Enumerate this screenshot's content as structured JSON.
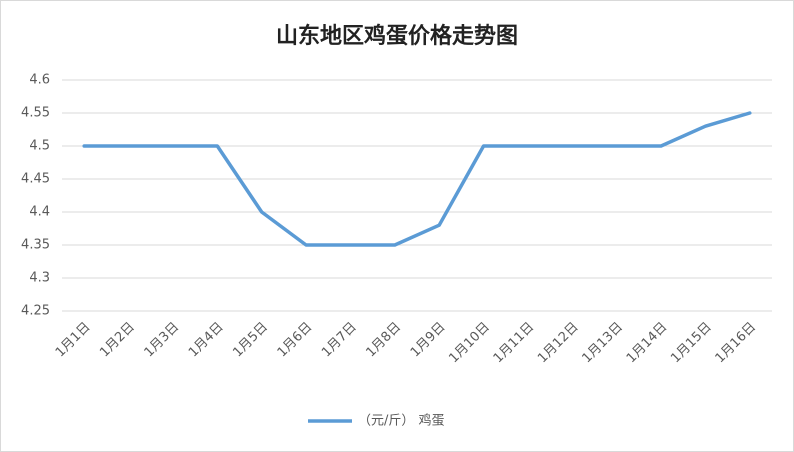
{
  "chart_data": {
    "type": "line",
    "title": "山东地区鸡蛋价格走势图",
    "categories": [
      "1月1日",
      "1月2日",
      "1月3日",
      "1月4日",
      "1月5日",
      "1月6日",
      "1月7日",
      "1月8日",
      "1月9日",
      "1月10日",
      "1月11日",
      "1月12日",
      "1月13日",
      "1月14日",
      "1月15日",
      "1月16日"
    ],
    "series": [
      {
        "name": "（元/斤） 鸡蛋",
        "color": "#5b9bd5",
        "values": [
          4.5,
          4.5,
          4.5,
          4.5,
          4.4,
          4.35,
          4.35,
          4.35,
          4.38,
          4.5,
          4.5,
          4.5,
          4.5,
          4.5,
          4.53,
          4.55
        ]
      }
    ],
    "ylim": [
      4.25,
      4.6
    ],
    "yticks": [
      4.25,
      4.3,
      4.35,
      4.4,
      4.45,
      4.5,
      4.55,
      4.6
    ],
    "grid": true,
    "legend": "bottom"
  }
}
